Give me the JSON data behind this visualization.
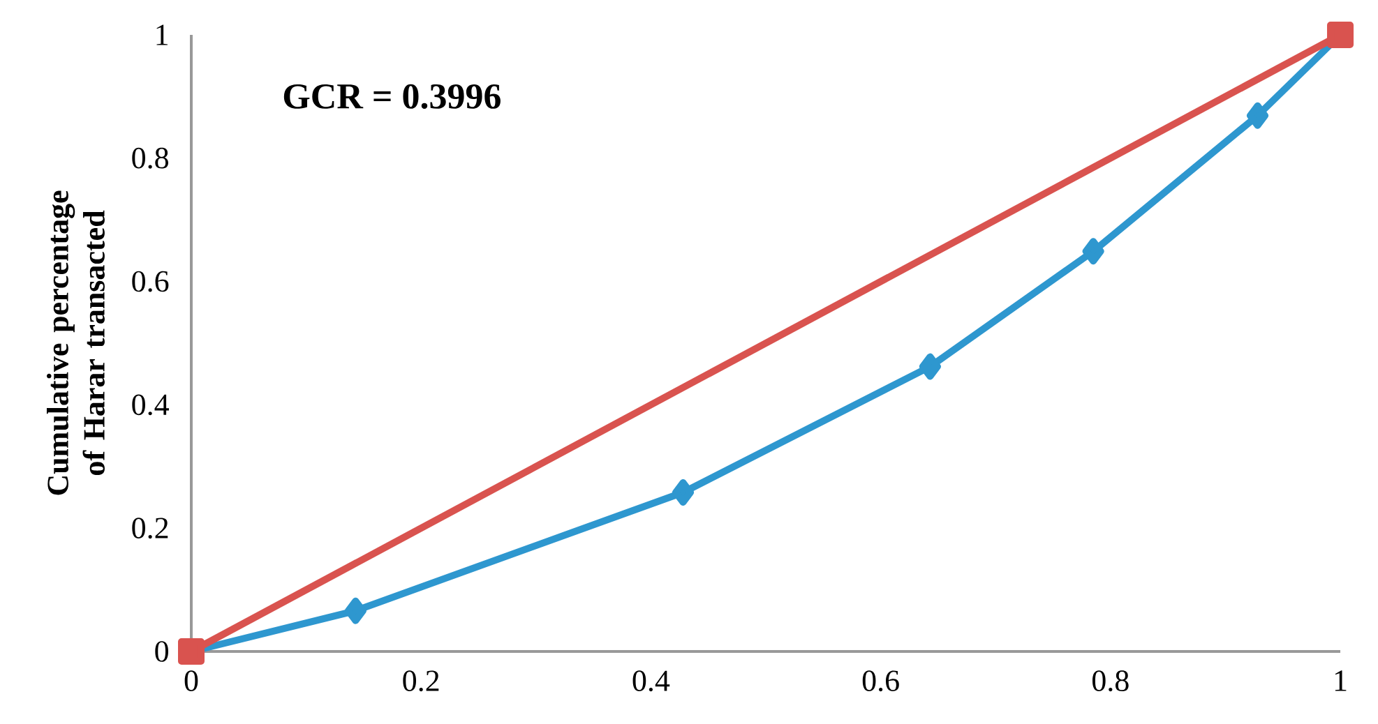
{
  "chart_data": {
    "type": "line",
    "ylabel": "Cumulative percentage of Harar transacted",
    "annotations": [
      "GCR = 0.3996"
    ],
    "series": [
      {
        "color": "#2e97cf",
        "marker": "diamond",
        "x": [
          0,
          0.143,
          0.428,
          0.643,
          0.785,
          0.928,
          1
        ],
        "values": [
          0,
          0.066,
          0.258,
          0.462,
          0.649,
          0.869,
          1
        ]
      },
      {
        "color": "#d9534f",
        "marker": "square",
        "x": [
          0,
          1
        ],
        "values": [
          0,
          1
        ]
      }
    ],
    "xlim": [
      0,
      1
    ],
    "ylim": [
      0,
      1
    ],
    "xticks": [
      0,
      0.2,
      0.4,
      0.6,
      0.8,
      1
    ],
    "yticks": [
      0,
      0.2,
      0.4,
      0.6,
      0.8,
      1
    ],
    "grid": false
  }
}
